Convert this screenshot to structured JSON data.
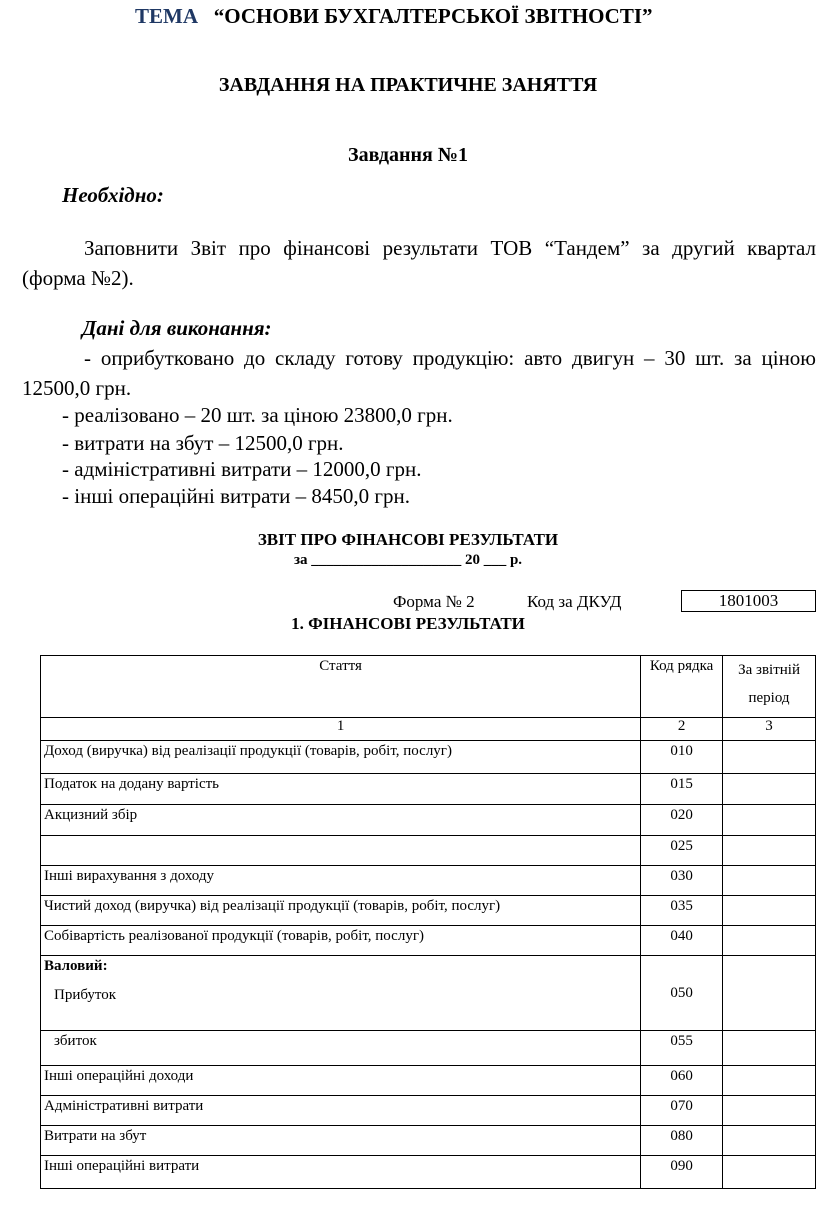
{
  "header": {
    "tema_label": "ТЕМА",
    "tema_title": "“ОСНОВИ БУХГАЛТЕРСЬКОЇ ЗВІТНОСТІ”",
    "subtitle": "ЗАВДАННЯ НА ПРАКТИЧНЕ ЗАНЯТТЯ",
    "task": "Завдання №1"
  },
  "body": {
    "need_label": "Необхідно:",
    "need_text": "Заповнити Звіт про фінансові результати ТОВ “Тандем” за другий квартал (форма №2).",
    "data_label": "Дані для виконання:",
    "data_first": "-       оприбутковано до складу готову продукцію: авто двигун – 30 шт. за ціною 12500,0 грн.",
    "items": [
      "-  реалізовано – 20 шт. за ціною 23800,0 грн.",
      "-  витрати на збут – 12500,0 грн.",
      "-  адміністративні витрати – 12000,0 грн.",
      "-  інші операційні витрати – 8450,0 грн."
    ]
  },
  "report": {
    "title": "ЗВІТ  ПРО  ФІНАНСОВІ  РЕЗУЛЬТАТИ",
    "period": "за ____________________ 20 ___  р.",
    "form": "Форма № 2",
    "dkud_label": "Код за ДКУД",
    "dkud_value": "1801003",
    "section": "1.   ФІНАНСОВІ РЕЗУЛЬТАТИ",
    "columns": [
      "Стаття",
      "Код рядка",
      "За звітній період"
    ],
    "column_numbers": [
      "1",
      "2",
      "3"
    ],
    "rows": [
      {
        "label": "Доход (виручка) від реалізації продукції (товарів, робіт, послуг)",
        "code": "010",
        "value": ""
      },
      {
        "label": "Податок на додану вартість",
        "code": "015",
        "value": ""
      },
      {
        "label": "Акцизний збір",
        "code": "020",
        "value": ""
      },
      {
        "label": "",
        "code": "025",
        "value": ""
      },
      {
        "label": "Інші вирахування з доходу",
        "code": "030",
        "value": ""
      },
      {
        "label": "Чистий доход (виручка) від реалізації продукції (товарів, робіт, послуг)",
        "code": "035",
        "value": ""
      },
      {
        "label": "Собівартість реалізованої продукції (товарів, робіт, послуг)",
        "code": "040",
        "value": ""
      },
      {
        "group": "Валовий:",
        "label": "Прибуток",
        "code": "050",
        "value": ""
      },
      {
        "label": "збиток",
        "code": "055",
        "value": ""
      },
      {
        "label": "Інші операційні доходи",
        "code": "060",
        "value": ""
      },
      {
        "label": "Адміністративні витрати",
        "code": "070",
        "value": ""
      },
      {
        "label": "Витрати на збут",
        "code": "080",
        "value": ""
      },
      {
        "label": "Інші операційні витрати",
        "code": "090",
        "value": ""
      }
    ]
  }
}
